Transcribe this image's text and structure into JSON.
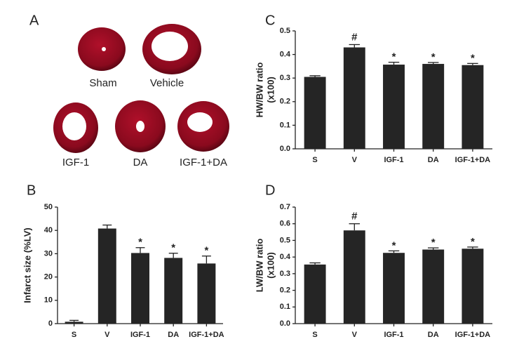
{
  "panel_a": {
    "letter": "A",
    "labels": [
      "Sham",
      "Vehicle",
      "IGF-1",
      "DA",
      "IGF-1+DA"
    ]
  },
  "chart_data": [
    {
      "type": "bar",
      "letter": "B",
      "ylabel": "Infarct size (%LV)",
      "color": "#252525",
      "categories": [
        "S",
        "V",
        "IGF-1",
        "DA",
        "IGF-1+DA"
      ],
      "values": [
        0.8,
        40.8,
        30.3,
        28.2,
        25.8
      ],
      "errors": [
        0.6,
        1.5,
        2.3,
        2.0,
        3.2
      ],
      "annotations": [
        null,
        null,
        "*",
        "*",
        "*"
      ],
      "ylim": [
        0,
        50
      ],
      "yticks": [
        0,
        10,
        20,
        30,
        40,
        50
      ]
    },
    {
      "type": "bar",
      "letter": "C",
      "ylabel": "HW/BW ratio",
      "ylabel2": "(x100)",
      "color": "#252525",
      "categories": [
        "S",
        "V",
        "IGF-1",
        "DA",
        "IGF-1+DA"
      ],
      "values": [
        0.305,
        0.43,
        0.357,
        0.36,
        0.355
      ],
      "errors": [
        0.005,
        0.012,
        0.01,
        0.006,
        0.007
      ],
      "annotations": [
        null,
        "#",
        "*",
        "*",
        "*"
      ],
      "ylim": [
        0,
        0.5
      ],
      "yticks": [
        {
          "value": 0,
          "label": "0.0"
        },
        0.1,
        0.2,
        0.3,
        0.4,
        0.5
      ]
    },
    {
      "type": "bar",
      "letter": "D",
      "ylabel": "LW/BW ratio",
      "ylabel2": "(x100)",
      "color": "#252525",
      "categories": [
        "S",
        "V",
        "IGF-1",
        "DA",
        "IGF-1+DA"
      ],
      "values": [
        0.355,
        0.56,
        0.425,
        0.445,
        0.45
      ],
      "errors": [
        0.01,
        0.04,
        0.012,
        0.01,
        0.01
      ],
      "annotations": [
        null,
        "#",
        "*",
        "*",
        "*"
      ],
      "ylim": [
        0,
        0.7
      ],
      "yticks": [
        {
          "value": 0,
          "label": "0.0"
        },
        0.1,
        0.2,
        0.3,
        0.4,
        0.5,
        0.6,
        0.7
      ]
    }
  ]
}
